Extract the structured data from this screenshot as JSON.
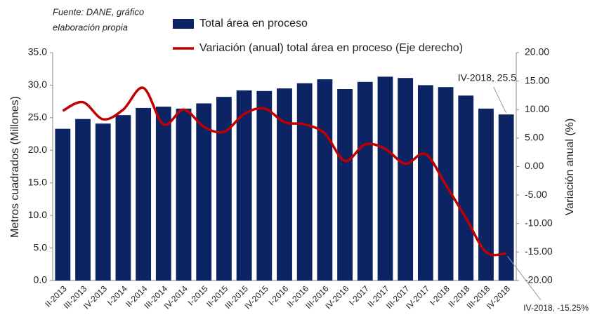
{
  "chart_data": {
    "type": "bar+line",
    "source": [
      "Fuente: DANE, gráfico",
      "elaboración propia"
    ],
    "ylabel": "Metros cuadrados (Millones)",
    "y2label": "Variación anual (%)",
    "categories": [
      "II-2013",
      "III-2013",
      "IV-2013",
      "I-2014",
      "II-2014",
      "III-2014",
      "IV-2014",
      "I-2015",
      "II-2015",
      "III-2015",
      "IV-2015",
      "I-2016",
      "II-2016",
      "III-2016",
      "IV-2016",
      "I-2017",
      "II-2017",
      "III-2017",
      "IV-2017",
      "I-2018",
      "II-2018",
      "III-2018",
      "IV-2018"
    ],
    "series": [
      {
        "name": "Total área en proceso",
        "type": "bar",
        "color": "#0c2463",
        "values": [
          23.3,
          24.8,
          24.1,
          25.4,
          26.5,
          26.7,
          26.4,
          27.2,
          28.2,
          29.2,
          29.1,
          29.5,
          30.3,
          30.9,
          29.4,
          30.5,
          31.3,
          31.1,
          30.0,
          29.7,
          28.4,
          26.4,
          25.5
        ]
      },
      {
        "name": "Variación (anual) total área en proceso (Eje derecho)",
        "type": "line",
        "axis": "y2",
        "color": "#c00000",
        "values": [
          9.8,
          11.3,
          8.3,
          10.0,
          13.8,
          7.4,
          10.0,
          7.0,
          6.1,
          9.2,
          10.2,
          7.8,
          7.4,
          5.8,
          1.0,
          3.9,
          3.1,
          0.5,
          2.2,
          -3.2,
          -9.0,
          -15.0,
          -15.25
        ]
      }
    ],
    "annotations": [
      "IV-2018, 25.5",
      "IV-2018, -15.25%"
    ],
    "ylim": [
      0,
      35
    ],
    "yticks": [
      {
        "value": 0,
        "label": "0.0"
      },
      {
        "value": 5,
        "label": "5.0"
      },
      {
        "value": 10,
        "label": "10.0"
      },
      {
        "value": 15,
        "label": "15.0"
      },
      {
        "value": 20,
        "label": "20.0"
      },
      {
        "value": 25,
        "label": "25.0"
      },
      {
        "value": 30,
        "label": "30.0"
      },
      {
        "value": 35,
        "label": "35.0"
      }
    ],
    "y2lim": [
      -20,
      20
    ],
    "y2ticks": [
      {
        "value": -20,
        "label": "-20.00"
      },
      {
        "value": -15,
        "label": "-15.00"
      },
      {
        "value": -10,
        "label": "-10.00"
      },
      {
        "value": -5,
        "label": "-5.00"
      },
      {
        "value": 0,
        "label": "0.00"
      },
      {
        "value": 5,
        "label": "5.00"
      },
      {
        "value": 10,
        "label": "10.00"
      },
      {
        "value": 15,
        "label": "15.00"
      },
      {
        "value": 20,
        "label": "20.00"
      }
    ]
  }
}
